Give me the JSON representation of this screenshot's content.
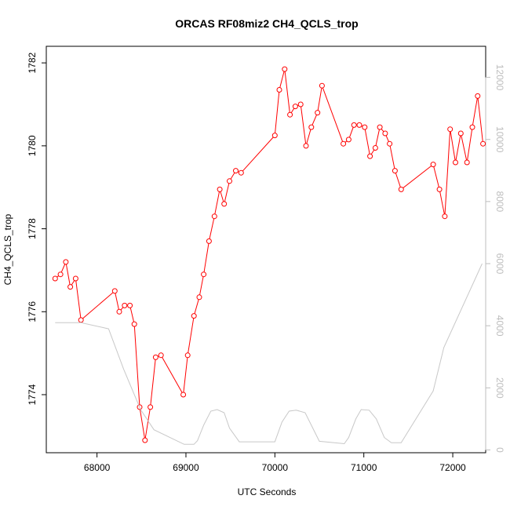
{
  "chart_data": {
    "type": "line",
    "title": "ORCAS RF08miz2 CH4_QCLS_trop",
    "xlabel": "UTC Seconds",
    "ylabel": "CH4_QCLS_trop",
    "ylabel_right": "",
    "xlim": [
      67430,
      72370
    ],
    "ylim": [
      1772.6,
      1782.4
    ],
    "ylim_right": [
      -90,
      13000
    ],
    "x_ticks": [
      68000,
      69000,
      70000,
      71000,
      72000
    ],
    "y_ticks": [
      1774,
      1776,
      1778,
      1780,
      1782
    ],
    "y_ticks_right": [
      0,
      2000,
      4000,
      6000,
      8000,
      10000,
      12000
    ],
    "grid": false,
    "colors": {
      "primary": "#ff0000",
      "secondary": "#c8c8c8",
      "right_axis": "#bdbdbd"
    },
    "series": [
      {
        "axis": "left",
        "marker": "circle",
        "color": "#ff0000",
        "x": [
          67530,
          67590,
          67650,
          67700,
          67760,
          67820,
          68200,
          68250,
          68310,
          68370,
          68420,
          68480,
          68540,
          68600,
          68660,
          68720,
          68970,
          69020,
          69090,
          69150,
          69200,
          69260,
          69320,
          69380,
          69430,
          69490,
          69560,
          69620,
          70000,
          70050,
          70110,
          70170,
          70230,
          70290,
          70350,
          70410,
          70480,
          70530,
          70770,
          70830,
          70890,
          70950,
          71010,
          71070,
          71130,
          71180,
          71240,
          71290,
          71350,
          71420,
          71780,
          71850,
          71910,
          71970,
          72030,
          72090,
          72160,
          72220,
          72280,
          72340
        ],
        "values": [
          1776.8,
          1776.9,
          1777.2,
          1776.6,
          1776.8,
          1775.8,
          1776.5,
          1776.0,
          1776.15,
          1776.15,
          1775.7,
          1773.7,
          1772.9,
          1773.7,
          1774.9,
          1774.95,
          1774.0,
          1774.95,
          1775.9,
          1776.35,
          1776.9,
          1777.7,
          1778.3,
          1778.95,
          1778.6,
          1779.15,
          1779.4,
          1779.35,
          1780.25,
          1781.35,
          1781.85,
          1780.75,
          1780.95,
          1781.0,
          1780.0,
          1780.45,
          1780.8,
          1781.45,
          1780.05,
          1780.15,
          1780.5,
          1780.5,
          1780.45,
          1779.75,
          1779.95,
          1780.45,
          1780.3,
          1780.05,
          1779.4,
          1778.95,
          1779.55,
          1778.95,
          1778.3,
          1780.4,
          1779.6,
          1780.3,
          1779.6,
          1780.45,
          1781.2,
          1780.05
        ]
      },
      {
        "axis": "right",
        "marker": "none",
        "color": "#c8c8c8",
        "x": [
          67530,
          67820,
          68130,
          68300,
          68490,
          68640,
          68980,
          69090,
          69130,
          69200,
          69280,
          69350,
          69430,
          69490,
          69600,
          70000,
          70080,
          70160,
          70240,
          70340,
          70500,
          70780,
          70830,
          70910,
          70970,
          71060,
          71140,
          71230,
          71310,
          71420,
          71780,
          71900,
          72330
        ],
        "values": [
          4100,
          4100,
          3900,
          2600,
          1300,
          650,
          180,
          180,
          300,
          800,
          1250,
          1300,
          1200,
          700,
          260,
          260,
          900,
          1250,
          1280,
          1200,
          280,
          200,
          400,
          1000,
          1300,
          1280,
          1000,
          400,
          230,
          230,
          1900,
          3300,
          6000
        ]
      }
    ]
  }
}
